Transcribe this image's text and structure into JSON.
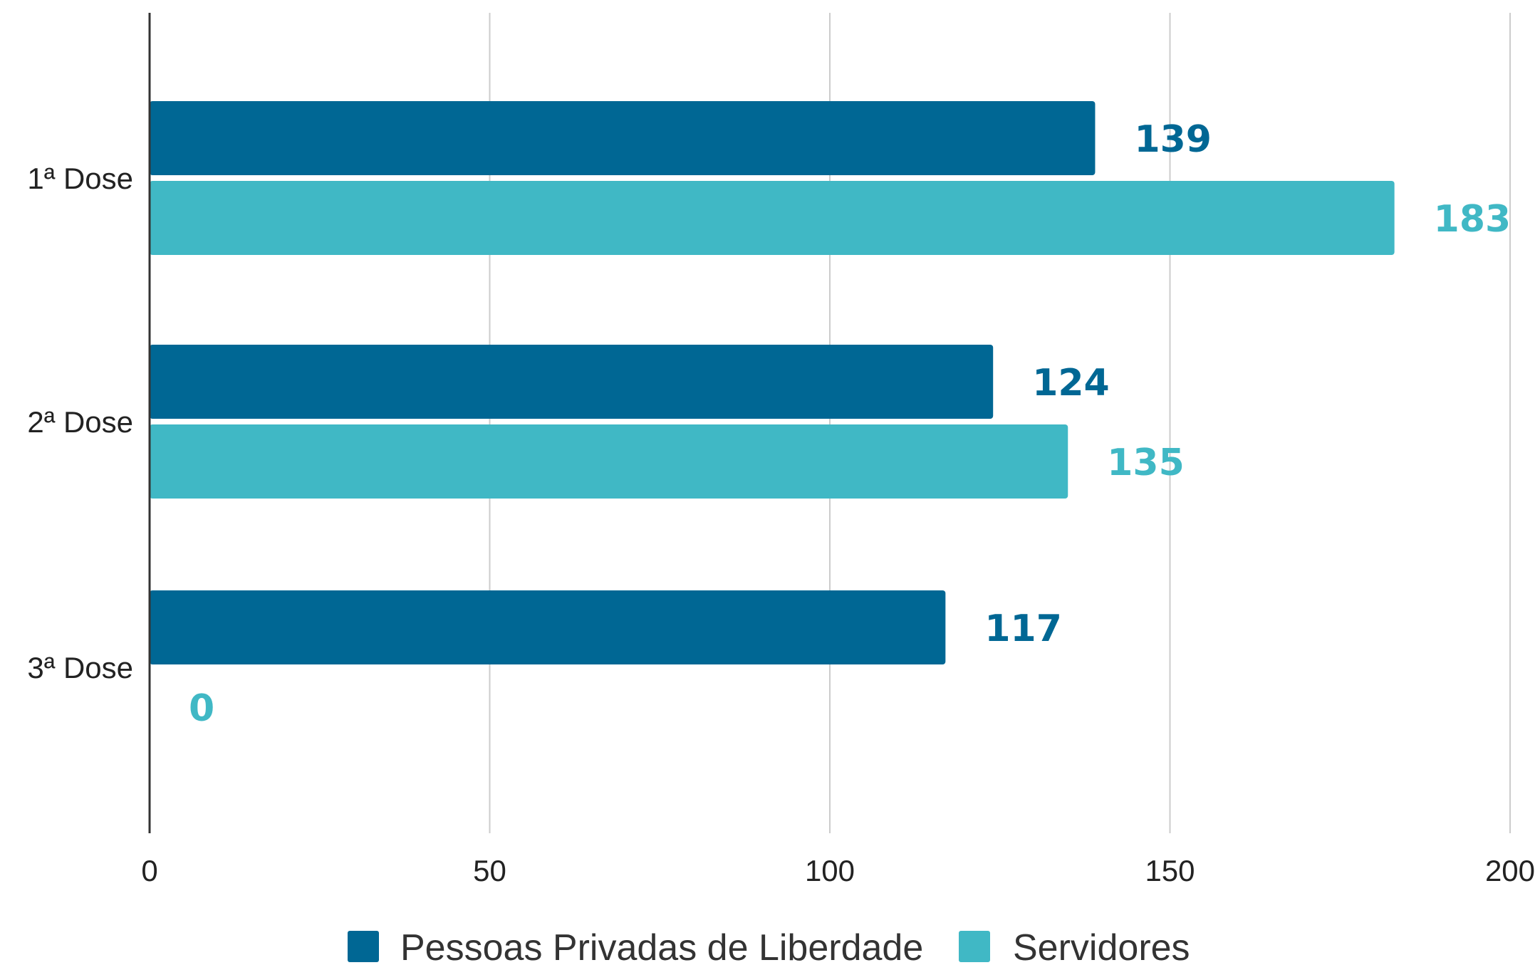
{
  "chart_data": {
    "type": "bar",
    "orientation": "horizontal",
    "categories": [
      "1ª Dose",
      "2ª Dose",
      "3ª Dose"
    ],
    "series": [
      {
        "name": "Pessoas Privadas de Liberdade",
        "values": [
          139,
          124,
          117
        ],
        "color": "#006794"
      },
      {
        "name": "Servidores",
        "values": [
          183,
          135,
          0
        ],
        "color": "#40b8c5"
      }
    ],
    "xlim": [
      0,
      200
    ],
    "xticks": [
      0,
      50,
      100,
      150,
      200
    ],
    "grid": true,
    "legend_position": "bottom",
    "title": "",
    "xlabel": "",
    "ylabel": ""
  }
}
